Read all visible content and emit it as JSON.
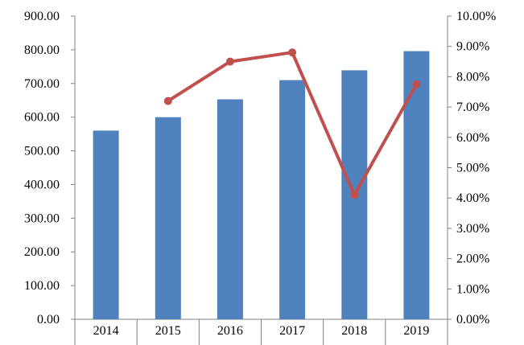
{
  "chart_data": {
    "type": "bar",
    "title": "",
    "xlabel": "",
    "ylabel": "",
    "y2label": "",
    "categories": [
      "2014",
      "2015",
      "2016",
      "2017",
      "2018",
      "2019"
    ],
    "series": [
      {
        "type": "bar",
        "axis": "left",
        "color": "#4f81bd",
        "values": [
          560,
          600,
          653,
          710,
          739,
          796
        ]
      },
      {
        "type": "line",
        "axis": "right",
        "color": "#c0504d",
        "values": [
          null,
          7.2,
          8.5,
          8.8,
          4.1,
          7.75
        ]
      }
    ],
    "ylim": [
      0,
      900
    ],
    "y_ticks": [
      "0.00",
      "100.00",
      "200.00",
      "300.00",
      "400.00",
      "500.00",
      "600.00",
      "700.00",
      "800.00",
      "900.00"
    ],
    "y2lim": [
      0,
      10
    ],
    "y2_ticks": [
      "0.00%",
      "1.00%",
      "2.00%",
      "3.00%",
      "4.00%",
      "5.00%",
      "6.00%",
      "7.00%",
      "8.00%",
      "9.00%",
      "10.00%"
    ],
    "grid": false,
    "legend": "none"
  }
}
